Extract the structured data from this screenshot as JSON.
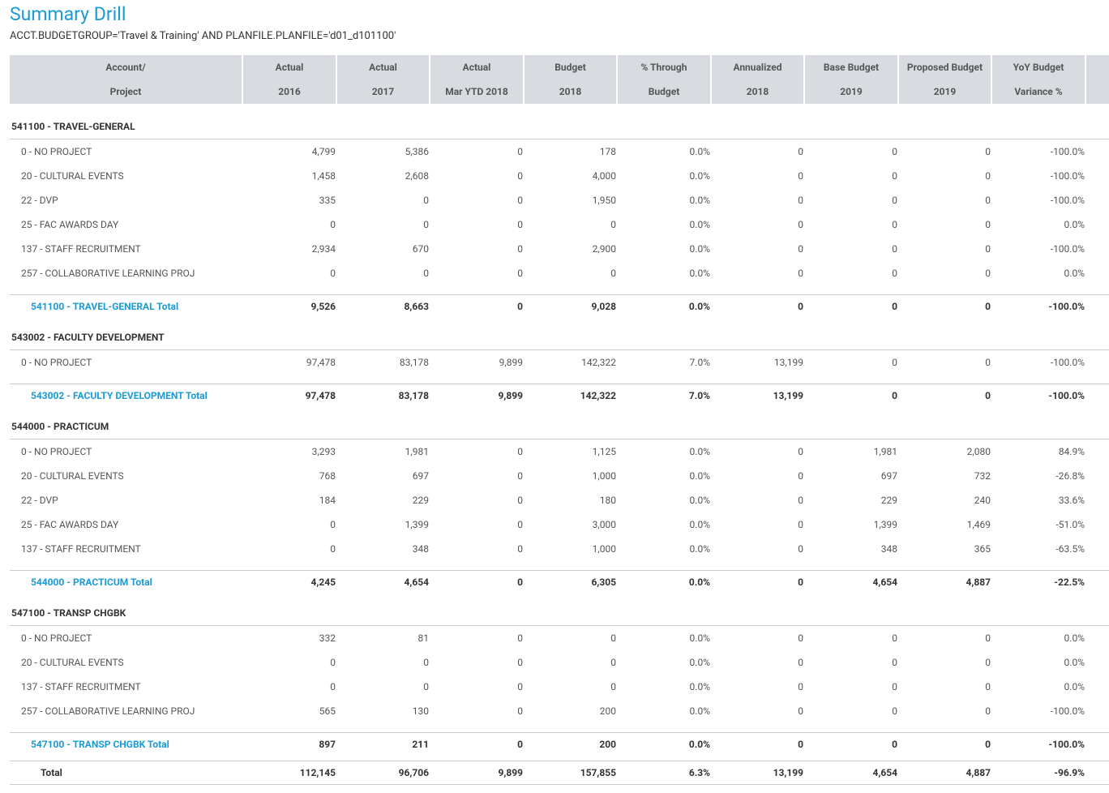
{
  "header": {
    "title": "Summary Drill",
    "filter": "ACCT.BUDGETGROUP='Travel & Training' AND PLANFILE.PLANFILE='d01_d101100'"
  },
  "table": {
    "columns": [
      [
        "Account/",
        "Project"
      ],
      [
        "Actual",
        "2016"
      ],
      [
        "Actual",
        "2017"
      ],
      [
        "Actual",
        "Mar YTD 2018"
      ],
      [
        "Budget",
        "2018"
      ],
      [
        "% Through",
        "Budget"
      ],
      [
        "Annualized",
        "2018"
      ],
      [
        "Base Budget",
        "2019"
      ],
      [
        "Proposed Budget",
        "2019"
      ],
      [
        "YoY Budget",
        "Variance %"
      ]
    ],
    "groups": [
      {
        "name": "541100 - TRAVEL-GENERAL",
        "rows": [
          [
            "0 - NO PROJECT",
            "4,799",
            "5,386",
            "0",
            "178",
            "0.0%",
            "0",
            "0",
            "0",
            "-100.0%"
          ],
          [
            "20 - CULTURAL EVENTS",
            "1,458",
            "2,608",
            "0",
            "4,000",
            "0.0%",
            "0",
            "0",
            "0",
            "-100.0%"
          ],
          [
            "22 - DVP",
            "335",
            "0",
            "0",
            "1,950",
            "0.0%",
            "0",
            "0",
            "0",
            "-100.0%"
          ],
          [
            "25 - FAC AWARDS DAY",
            "0",
            "0",
            "0",
            "0",
            "0.0%",
            "0",
            "0",
            "0",
            "0.0%"
          ],
          [
            "137 - STAFF RECRUITMENT",
            "2,934",
            "670",
            "0",
            "2,900",
            "0.0%",
            "0",
            "0",
            "0",
            "-100.0%"
          ],
          [
            "257 - COLLABORATIVE LEARNING PROJ",
            "0",
            "0",
            "0",
            "0",
            "0.0%",
            "0",
            "0",
            "0",
            "0.0%"
          ]
        ],
        "total": [
          "541100 - TRAVEL-GENERAL Total",
          "9,526",
          "8,663",
          "0",
          "9,028",
          "0.0%",
          "0",
          "0",
          "0",
          "-100.0%"
        ]
      },
      {
        "name": "543002 - FACULTY DEVELOPMENT",
        "rows": [
          [
            "0 - NO PROJECT",
            "97,478",
            "83,178",
            "9,899",
            "142,322",
            "7.0%",
            "13,199",
            "0",
            "0",
            "-100.0%"
          ]
        ],
        "total": [
          "543002 - FACULTY DEVELOPMENT Total",
          "97,478",
          "83,178",
          "9,899",
          "142,322",
          "7.0%",
          "13,199",
          "0",
          "0",
          "-100.0%"
        ]
      },
      {
        "name": "544000 - PRACTICUM",
        "rows": [
          [
            "0 - NO PROJECT",
            "3,293",
            "1,981",
            "0",
            "1,125",
            "0.0%",
            "0",
            "1,981",
            "2,080",
            "84.9%"
          ],
          [
            "20 - CULTURAL EVENTS",
            "768",
            "697",
            "0",
            "1,000",
            "0.0%",
            "0",
            "697",
            "732",
            "-26.8%"
          ],
          [
            "22 - DVP",
            "184",
            "229",
            "0",
            "180",
            "0.0%",
            "0",
            "229",
            "240",
            "33.6%"
          ],
          [
            "25 - FAC AWARDS DAY",
            "0",
            "1,399",
            "0",
            "3,000",
            "0.0%",
            "0",
            "1,399",
            "1,469",
            "-51.0%"
          ],
          [
            "137 - STAFF RECRUITMENT",
            "0",
            "348",
            "0",
            "1,000",
            "0.0%",
            "0",
            "348",
            "365",
            "-63.5%"
          ]
        ],
        "total": [
          "544000 - PRACTICUM Total",
          "4,245",
          "4,654",
          "0",
          "6,305",
          "0.0%",
          "0",
          "4,654",
          "4,887",
          "-22.5%"
        ]
      },
      {
        "name": "547100 - TRANSP CHGBK",
        "rows": [
          [
            "0 - NO PROJECT",
            "332",
            "81",
            "0",
            "0",
            "0.0%",
            "0",
            "0",
            "0",
            "0.0%"
          ],
          [
            "20 - CULTURAL EVENTS",
            "0",
            "0",
            "0",
            "0",
            "0.0%",
            "0",
            "0",
            "0",
            "0.0%"
          ],
          [
            "137 - STAFF RECRUITMENT",
            "0",
            "0",
            "0",
            "0",
            "0.0%",
            "0",
            "0",
            "0",
            "0.0%"
          ],
          [
            "257 - COLLABORATIVE LEARNING PROJ",
            "565",
            "130",
            "0",
            "200",
            "0.0%",
            "0",
            "0",
            "0",
            "-100.0%"
          ]
        ],
        "total": [
          "547100 - TRANSP CHGBK Total",
          "897",
          "211",
          "0",
          "200",
          "0.0%",
          "0",
          "0",
          "0",
          "-100.0%"
        ]
      }
    ],
    "grand_total": [
      "Total",
      "112,145",
      "96,706",
      "9,899",
      "157,855",
      "6.3%",
      "13,199",
      "4,654",
      "4,887",
      "-96.9%"
    ]
  }
}
